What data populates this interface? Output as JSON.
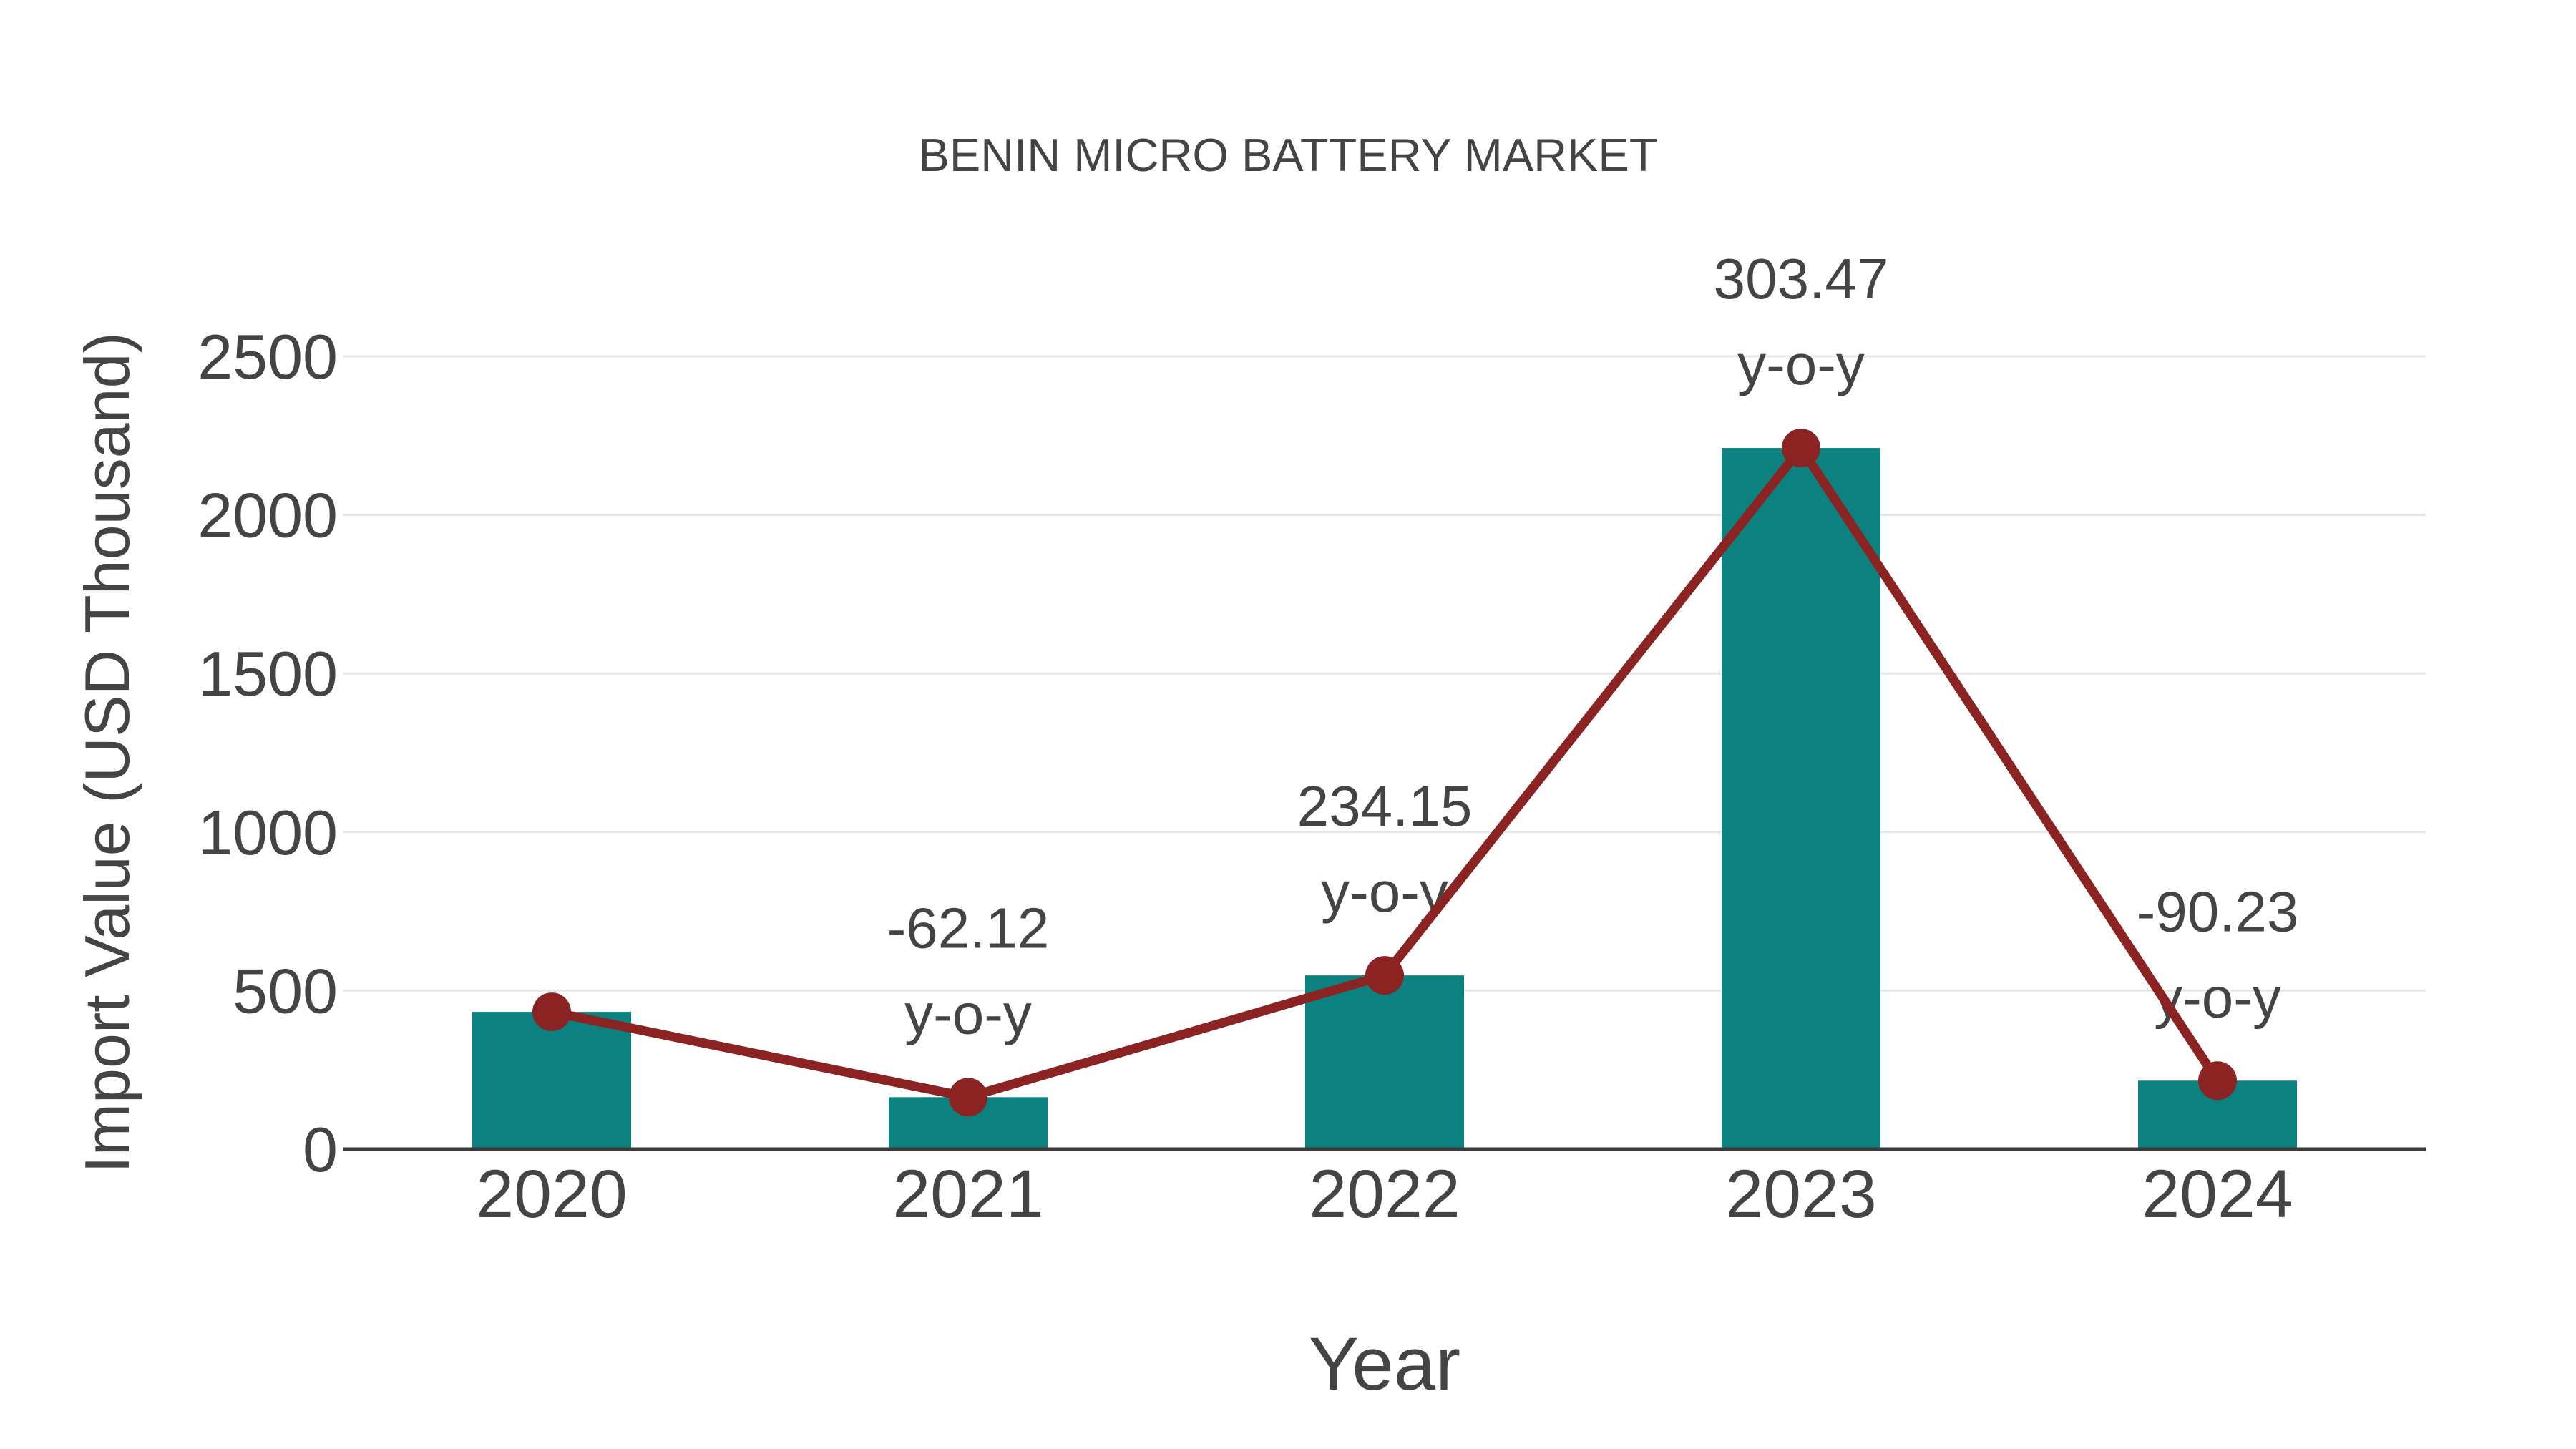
{
  "chart_data": {
    "type": "bar",
    "title": "BENIN MICRO BATTERY MARKET",
    "xlabel": "Year",
    "ylabel": "Import Value (USD Thousand)",
    "categories": [
      "2020",
      "2021",
      "2022",
      "2023",
      "2024"
    ],
    "series": [
      {
        "name": "import-value-bars",
        "type": "bar",
        "values": [
          433,
          164,
          548,
          2211,
          216
        ],
        "color": "#0B8280"
      },
      {
        "name": "import-value-line",
        "type": "line",
        "values": [
          433,
          164,
          548,
          2211,
          216
        ],
        "color": "#8B2323"
      }
    ],
    "annotations": [
      {
        "category": "2021",
        "line1": "-62.12",
        "line2": "y-o-y"
      },
      {
        "category": "2022",
        "line1": "234.15",
        "line2": "y-o-y"
      },
      {
        "category": "2023",
        "line1": "303.47",
        "line2": "y-o-y"
      },
      {
        "category": "2024",
        "line1": "-90.23",
        "line2": "y-o-y"
      }
    ],
    "yticks": [
      0,
      500,
      1000,
      1500,
      2000,
      2500
    ],
    "ylim": [
      0,
      2500
    ],
    "grid": true,
    "legend_position": "none"
  },
  "colors": {
    "bar": "#0B8280",
    "line": "#8B2323",
    "text": "#444444",
    "gridline": "#e7e7e7",
    "axis_line": "#3b3b3b",
    "background": "#ffffff"
  }
}
